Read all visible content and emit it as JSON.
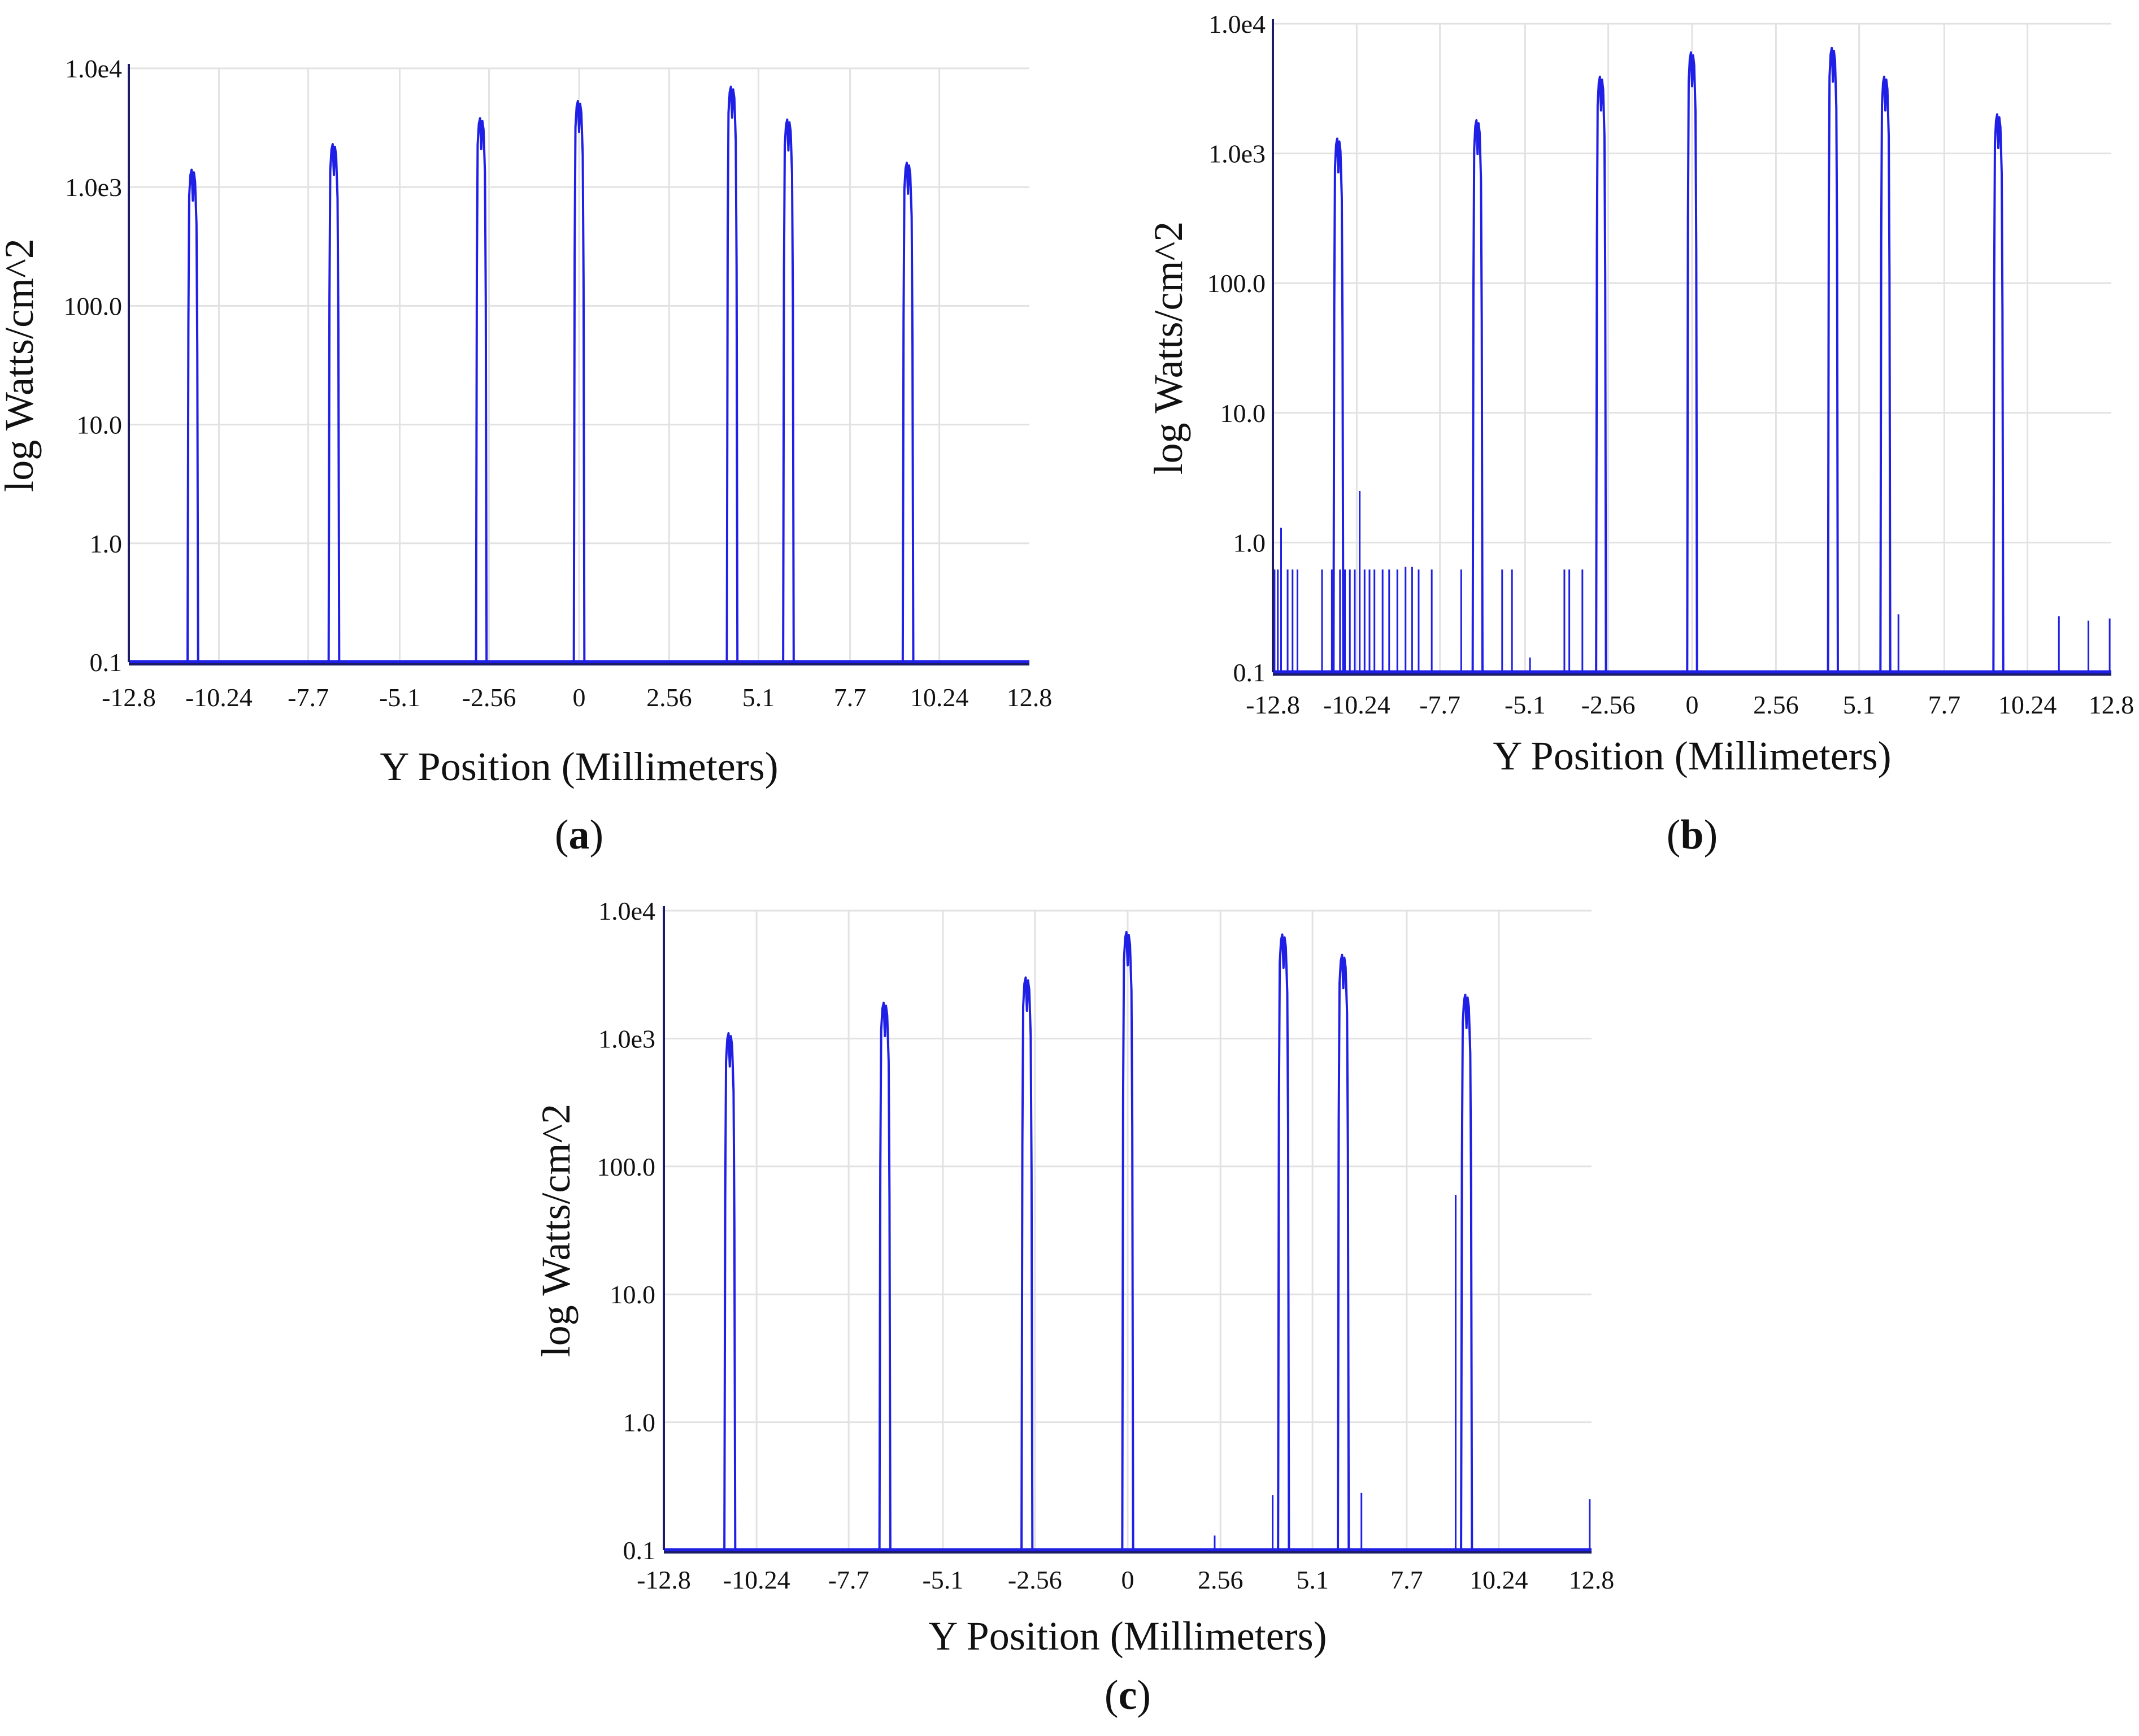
{
  "colors": {
    "series": "#1f1fe6",
    "grid": "#e2e2e2",
    "axis": "#1b1b66",
    "background": "#ffffff",
    "text": "#111111"
  },
  "chart_data": [
    {
      "panel": "a",
      "label": "(a)",
      "type": "line",
      "title": "",
      "xlabel": "Y Position (Millimeters)",
      "ylabel": "log Watts/cm^2",
      "yscale": "log",
      "xlim": [
        -12.8,
        12.8
      ],
      "ylim": [
        0.1,
        10000
      ],
      "xticks": [
        "-12.8",
        "-10.24",
        "-7.7",
        "-5.1",
        "-2.56",
        "0",
        "2.56",
        "5.1",
        "7.7",
        "10.24",
        "12.8"
      ],
      "yticks": [
        "0.1",
        "1.0",
        "10.0",
        "100.0",
        "1.0e3",
        "1.0e4"
      ],
      "grid": true,
      "baseline": 0.1,
      "peaks": [
        {
          "x": -10.98,
          "y": 1400
        },
        {
          "x": -6.97,
          "y": 2300
        },
        {
          "x": -2.78,
          "y": 3800
        },
        {
          "x": 0.0,
          "y": 5300
        },
        {
          "x": 4.35,
          "y": 7000
        },
        {
          "x": 5.95,
          "y": 3700
        },
        {
          "x": 9.35,
          "y": 1600
        }
      ],
      "spikes": []
    },
    {
      "panel": "b",
      "label": "(b)",
      "type": "line",
      "title": "",
      "xlabel": "Y Position (Millimeters)",
      "ylabel": "log Watts/cm^2",
      "yscale": "log",
      "xlim": [
        -12.8,
        12.8
      ],
      "ylim": [
        0.1,
        10000
      ],
      "xticks": [
        "-12.8",
        "-10.24",
        "-7.7",
        "-5.1",
        "-2.56",
        "0",
        "2.56",
        "5.1",
        "7.7",
        "10.24",
        "12.8"
      ],
      "yticks": [
        "0.1",
        "1.0",
        "10.0",
        "100.0",
        "1.0e3",
        "1.0e4"
      ],
      "grid": true,
      "baseline": 0.1,
      "peaks": [
        {
          "x": -10.8,
          "y": 1300
        },
        {
          "x": -6.55,
          "y": 1800
        },
        {
          "x": -2.78,
          "y": 3900
        },
        {
          "x": 0.0,
          "y": 6000
        },
        {
          "x": 4.3,
          "y": 6500
        },
        {
          "x": 5.9,
          "y": 3900
        },
        {
          "x": 9.35,
          "y": 2000
        }
      ],
      "spikes": [
        {
          "x": -12.75,
          "y": 0.62
        },
        {
          "x": -12.65,
          "y": 0.62
        },
        {
          "x": -12.55,
          "y": 1.3
        },
        {
          "x": -12.35,
          "y": 0.62
        },
        {
          "x": -12.2,
          "y": 0.62
        },
        {
          "x": -12.05,
          "y": 0.62
        },
        {
          "x": -11.3,
          "y": 0.62
        },
        {
          "x": -11.0,
          "y": 0.62
        },
        {
          "x": -10.75,
          "y": 0.62
        },
        {
          "x": -10.6,
          "y": 0.62
        },
        {
          "x": -10.45,
          "y": 0.62
        },
        {
          "x": -10.3,
          "y": 0.62
        },
        {
          "x": -10.15,
          "y": 2.5
        },
        {
          "x": -10.0,
          "y": 0.62
        },
        {
          "x": -9.85,
          "y": 0.62
        },
        {
          "x": -9.7,
          "y": 0.62
        },
        {
          "x": -9.45,
          "y": 0.62
        },
        {
          "x": -9.25,
          "y": 0.62
        },
        {
          "x": -9.0,
          "y": 0.62
        },
        {
          "x": -8.75,
          "y": 0.65
        },
        {
          "x": -8.55,
          "y": 0.65
        },
        {
          "x": -8.35,
          "y": 0.62
        },
        {
          "x": -7.95,
          "y": 0.62
        },
        {
          "x": -7.05,
          "y": 0.62
        },
        {
          "x": -5.8,
          "y": 0.62
        },
        {
          "x": -5.5,
          "y": 0.62
        },
        {
          "x": -4.95,
          "y": 0.13
        },
        {
          "x": -3.9,
          "y": 0.62
        },
        {
          "x": -3.75,
          "y": 0.62
        },
        {
          "x": -3.35,
          "y": 0.62
        },
        {
          "x": 6.3,
          "y": 0.28
        },
        {
          "x": 11.2,
          "y": 0.27
        },
        {
          "x": 12.1,
          "y": 0.25
        },
        {
          "x": 12.75,
          "y": 0.26
        }
      ]
    },
    {
      "panel": "c",
      "label": "(c)",
      "type": "line",
      "title": "",
      "xlabel": "Y Position (Millimeters)",
      "ylabel": "log Watts/cm^2",
      "yscale": "log",
      "xlim": [
        -12.8,
        12.8
      ],
      "ylim": [
        0.1,
        10000
      ],
      "xticks": [
        "-12.8",
        "-10.24",
        "-7.7",
        "-5.1",
        "-2.56",
        "0",
        "2.56",
        "5.1",
        "7.7",
        "10.24",
        "12.8"
      ],
      "yticks": [
        "0.1",
        "1.0",
        "10.0",
        "100.0",
        "1.0e3",
        "1.0e4"
      ],
      "grid": true,
      "baseline": 0.1,
      "peaks": [
        {
          "x": -10.98,
          "y": 1100
        },
        {
          "x": -6.7,
          "y": 1900
        },
        {
          "x": -2.78,
          "y": 3000
        },
        {
          "x": 0.0,
          "y": 6800
        },
        {
          "x": 4.3,
          "y": 6500
        },
        {
          "x": 5.95,
          "y": 4500
        },
        {
          "x": 9.35,
          "y": 2200
        }
      ],
      "spikes": [
        {
          "x": 2.4,
          "y": 0.13
        },
        {
          "x": 4.0,
          "y": 0.27
        },
        {
          "x": 6.45,
          "y": 0.28
        },
        {
          "x": 9.05,
          "y": 60
        },
        {
          "x": 12.75,
          "y": 0.25
        }
      ]
    }
  ]
}
